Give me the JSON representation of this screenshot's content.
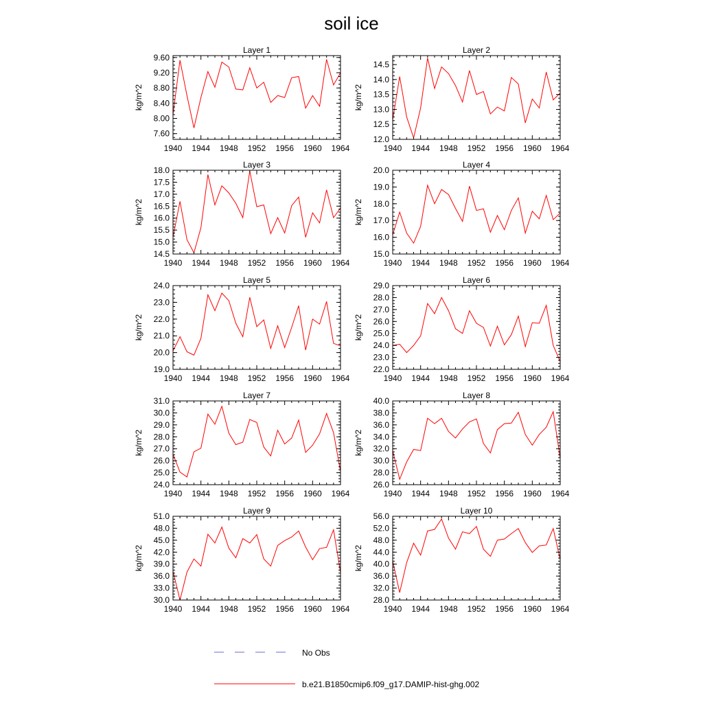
{
  "page": {
    "title": "soil ice"
  },
  "legend": [
    {
      "label": "No Obs",
      "color": "#6a6ad0",
      "style": "dashed"
    },
    {
      "label": "b.e21.B1850cmip6.f09_g17.DAMIP-hist-ghg.002",
      "color": "#ff0000",
      "style": "solid"
    }
  ],
  "chart_data": [
    {
      "type": "line",
      "title": "Layer 1",
      "ylabel": "kg/m^2",
      "xlim": [
        1940,
        1964
      ],
      "xticks": [
        1940,
        1944,
        1948,
        1952,
        1956,
        1960,
        1964
      ],
      "ylim": [
        7.45,
        9.65
      ],
      "yticks": [
        "7.60",
        "8.00",
        "8.40",
        "8.80",
        "9.20",
        "9.60"
      ],
      "x": [
        1940,
        1941,
        1942,
        1943,
        1944,
        1945,
        1946,
        1947,
        1948,
        1949,
        1950,
        1951,
        1952,
        1953,
        1954,
        1955,
        1956,
        1957,
        1958,
        1959,
        1960,
        1961,
        1962,
        1963,
        1964
      ],
      "series": [
        {
          "color": "#ff0000",
          "values": [
            8.1,
            9.53,
            8.6,
            7.75,
            8.55,
            9.23,
            8.82,
            9.48,
            9.35,
            8.77,
            8.75,
            9.33,
            8.8,
            8.95,
            8.42,
            8.6,
            8.55,
            9.07,
            9.1,
            8.27,
            8.6,
            8.32,
            9.55,
            8.88,
            9.2
          ]
        }
      ]
    },
    {
      "type": "line",
      "title": "Layer 2",
      "ylabel": "kg/m^2",
      "xlim": [
        1940,
        1964
      ],
      "xticks": [
        1940,
        1944,
        1948,
        1952,
        1956,
        1960,
        1964
      ],
      "ylim": [
        12.0,
        14.8
      ],
      "yticks": [
        "12.0",
        "12.5",
        "13.0",
        "13.5",
        "14.0",
        "14.5"
      ],
      "x": [
        1940,
        1941,
        1942,
        1943,
        1944,
        1945,
        1946,
        1947,
        1948,
        1949,
        1950,
        1951,
        1952,
        1953,
        1954,
        1955,
        1956,
        1957,
        1958,
        1959,
        1960,
        1961,
        1962,
        1963,
        1964
      ],
      "series": [
        {
          "color": "#ff0000",
          "values": [
            12.65,
            14.1,
            12.75,
            12.05,
            13.05,
            14.72,
            13.7,
            14.42,
            14.2,
            13.8,
            13.25,
            14.3,
            13.5,
            13.6,
            12.85,
            13.08,
            12.95,
            14.07,
            13.85,
            12.55,
            13.35,
            13.05,
            14.25,
            13.32,
            13.55
          ]
        }
      ]
    },
    {
      "type": "line",
      "title": "Layer 3",
      "ylabel": "kg/m^2",
      "xlim": [
        1940,
        1964
      ],
      "xticks": [
        1940,
        1944,
        1948,
        1952,
        1956,
        1960,
        1964
      ],
      "ylim": [
        14.5,
        18.0
      ],
      "yticks": [
        "14.5",
        "15.0",
        "15.5",
        "16.0",
        "16.5",
        "17.0",
        "17.5",
        "18.0"
      ],
      "x": [
        1940,
        1941,
        1942,
        1943,
        1944,
        1945,
        1946,
        1947,
        1948,
        1949,
        1950,
        1951,
        1952,
        1953,
        1954,
        1955,
        1956,
        1957,
        1958,
        1959,
        1960,
        1961,
        1962,
        1963,
        1964
      ],
      "series": [
        {
          "color": "#ff0000",
          "values": [
            15.2,
            16.7,
            15.1,
            14.55,
            15.6,
            17.82,
            16.55,
            17.35,
            17.05,
            16.62,
            16.02,
            17.97,
            16.48,
            16.55,
            15.35,
            16.02,
            15.38,
            16.52,
            16.88,
            15.2,
            16.22,
            15.8,
            17.18,
            16.02,
            16.42
          ]
        }
      ]
    },
    {
      "type": "line",
      "title": "Layer 4",
      "ylabel": "kg/m^2",
      "xlim": [
        1940,
        1964
      ],
      "xticks": [
        1940,
        1944,
        1948,
        1952,
        1956,
        1960,
        1964
      ],
      "ylim": [
        15.0,
        20.0
      ],
      "yticks": [
        "15.0",
        "16.0",
        "17.0",
        "18.0",
        "19.0",
        "20.0"
      ],
      "x": [
        1940,
        1941,
        1942,
        1943,
        1944,
        1945,
        1946,
        1947,
        1948,
        1949,
        1950,
        1951,
        1952,
        1953,
        1954,
        1955,
        1956,
        1957,
        1958,
        1959,
        1960,
        1961,
        1962,
        1963,
        1964
      ],
      "series": [
        {
          "color": "#ff0000",
          "values": [
            16.15,
            17.5,
            16.25,
            15.65,
            16.65,
            19.1,
            18.0,
            18.85,
            18.55,
            17.72,
            16.95,
            19.05,
            17.6,
            17.7,
            16.3,
            17.3,
            16.45,
            17.6,
            18.35,
            16.25,
            17.55,
            17.1,
            18.5,
            17.05,
            17.45
          ]
        }
      ]
    },
    {
      "type": "line",
      "title": "Layer 5",
      "ylabel": "kg/m^2",
      "xlim": [
        1940,
        1964
      ],
      "xticks": [
        1940,
        1944,
        1948,
        1952,
        1956,
        1960,
        1964
      ],
      "ylim": [
        19.0,
        24.0
      ],
      "yticks": [
        "19.0",
        "20.0",
        "21.0",
        "22.0",
        "23.0",
        "24.0"
      ],
      "x": [
        1940,
        1941,
        1942,
        1943,
        1944,
        1945,
        1946,
        1947,
        1948,
        1949,
        1950,
        1951,
        1952,
        1953,
        1954,
        1955,
        1956,
        1957,
        1958,
        1959,
        1960,
        1961,
        1962,
        1963,
        1964
      ],
      "series": [
        {
          "color": "#ff0000",
          "values": [
            20.1,
            20.95,
            20.05,
            19.85,
            20.85,
            23.45,
            22.5,
            23.55,
            23.1,
            21.75,
            20.95,
            23.3,
            21.55,
            21.95,
            20.25,
            21.6,
            20.3,
            21.5,
            22.8,
            20.15,
            22.0,
            21.7,
            23.05,
            20.55,
            20.4
          ]
        }
      ]
    },
    {
      "type": "line",
      "title": "Layer 6",
      "ylabel": "kg/m^2",
      "xlim": [
        1940,
        1964
      ],
      "xticks": [
        1940,
        1944,
        1948,
        1952,
        1956,
        1960,
        1964
      ],
      "ylim": [
        22.0,
        29.0
      ],
      "yticks": [
        "22.0",
        "23.0",
        "24.0",
        "25.0",
        "26.0",
        "27.0",
        "28.0",
        "29.0"
      ],
      "x": [
        1940,
        1941,
        1942,
        1943,
        1944,
        1945,
        1946,
        1947,
        1948,
        1949,
        1950,
        1951,
        1952,
        1953,
        1954,
        1955,
        1956,
        1957,
        1958,
        1959,
        1960,
        1961,
        1962,
        1963,
        1964
      ],
      "series": [
        {
          "color": "#ff0000",
          "values": [
            24.0,
            24.1,
            23.4,
            24.0,
            24.8,
            27.5,
            26.65,
            28.0,
            26.9,
            25.4,
            25.0,
            26.9,
            25.85,
            25.5,
            23.95,
            25.6,
            24.05,
            24.9,
            26.45,
            23.9,
            25.9,
            25.85,
            27.35,
            24.0,
            22.65
          ]
        }
      ]
    },
    {
      "type": "line",
      "title": "Layer 7",
      "ylabel": "kg/m^2",
      "xlim": [
        1940,
        1964
      ],
      "xticks": [
        1940,
        1944,
        1948,
        1952,
        1956,
        1960,
        1964
      ],
      "ylim": [
        24.0,
        31.0
      ],
      "yticks": [
        "24.0",
        "25.0",
        "26.0",
        "27.0",
        "28.0",
        "29.0",
        "30.0",
        "31.0"
      ],
      "x": [
        1940,
        1941,
        1942,
        1943,
        1944,
        1945,
        1946,
        1947,
        1948,
        1949,
        1950,
        1951,
        1952,
        1953,
        1954,
        1955,
        1956,
        1957,
        1958,
        1959,
        1960,
        1961,
        1962,
        1963,
        1964
      ],
      "series": [
        {
          "color": "#ff0000",
          "values": [
            26.55,
            25.05,
            24.65,
            26.75,
            27.05,
            29.9,
            29.05,
            30.55,
            28.3,
            27.35,
            27.55,
            29.45,
            29.2,
            27.15,
            26.4,
            28.55,
            27.4,
            27.9,
            29.4,
            26.7,
            27.3,
            28.25,
            29.95,
            28.35,
            25.1
          ]
        }
      ]
    },
    {
      "type": "line",
      "title": "Layer 8",
      "ylabel": "kg/m^2",
      "xlim": [
        1940,
        1964
      ],
      "xticks": [
        1940,
        1944,
        1948,
        1952,
        1956,
        1960,
        1964
      ],
      "ylim": [
        26.0,
        40.0
      ],
      "yticks": [
        "26.0",
        "28.0",
        "30.0",
        "32.0",
        "34.0",
        "36.0",
        "38.0",
        "40.0"
      ],
      "x": [
        1940,
        1941,
        1942,
        1943,
        1944,
        1945,
        1946,
        1947,
        1948,
        1949,
        1950,
        1951,
        1952,
        1953,
        1954,
        1955,
        1956,
        1957,
        1958,
        1959,
        1960,
        1961,
        1962,
        1963,
        1964
      ],
      "series": [
        {
          "color": "#ff0000",
          "values": [
            31.7,
            26.9,
            29.8,
            31.9,
            31.7,
            37.1,
            36.2,
            37.1,
            34.9,
            33.8,
            35.3,
            36.5,
            37.0,
            32.9,
            31.3,
            35.2,
            36.2,
            36.3,
            38.1,
            34.4,
            32.6,
            34.4,
            35.6,
            38.2,
            30.4
          ]
        }
      ]
    },
    {
      "type": "line",
      "title": "Layer 9",
      "ylabel": "kg/m^2",
      "xlim": [
        1940,
        1964
      ],
      "xticks": [
        1940,
        1944,
        1948,
        1952,
        1956,
        1960,
        1964
      ],
      "ylim": [
        30.0,
        51.0
      ],
      "yticks": [
        "30.0",
        "33.0",
        "36.0",
        "39.0",
        "42.0",
        "45.0",
        "48.0",
        "51.0"
      ],
      "x": [
        1940,
        1941,
        1942,
        1943,
        1944,
        1945,
        1946,
        1947,
        1948,
        1949,
        1950,
        1951,
        1952,
        1953,
        1954,
        1955,
        1956,
        1957,
        1958,
        1959,
        1960,
        1961,
        1962,
        1963,
        1964
      ],
      "series": [
        {
          "color": "#ff0000",
          "values": [
            37.2,
            30.0,
            37.0,
            40.3,
            38.5,
            46.5,
            44.3,
            48.3,
            43.0,
            40.6,
            45.4,
            44.3,
            46.4,
            40.3,
            38.5,
            43.7,
            44.9,
            45.8,
            47.3,
            43.3,
            40.1,
            42.9,
            43.2,
            47.6,
            36.9
          ]
        }
      ]
    },
    {
      "type": "line",
      "title": "Layer 10",
      "ylabel": "kg/m^2",
      "xlim": [
        1940,
        1964
      ],
      "xticks": [
        1940,
        1944,
        1948,
        1952,
        1956,
        1960,
        1964
      ],
      "ylim": [
        28.0,
        56.0
      ],
      "yticks": [
        "28.0",
        "32.0",
        "36.0",
        "40.0",
        "44.0",
        "48.0",
        "52.0",
        "56.0"
      ],
      "x": [
        1940,
        1941,
        1942,
        1943,
        1944,
        1945,
        1946,
        1947,
        1948,
        1949,
        1950,
        1951,
        1952,
        1953,
        1954,
        1955,
        1956,
        1957,
        1958,
        1959,
        1960,
        1961,
        1962,
        1963,
        1964
      ],
      "series": [
        {
          "color": "#ff0000",
          "values": [
            41.0,
            30.5,
            40.5,
            47.0,
            43.0,
            51.1,
            51.6,
            55.1,
            48.7,
            45.0,
            50.8,
            50.2,
            52.6,
            45.0,
            42.6,
            48.0,
            48.4,
            50.2,
            51.9,
            47.2,
            43.9,
            46.1,
            46.4,
            51.9,
            41.5
          ]
        }
      ]
    }
  ]
}
